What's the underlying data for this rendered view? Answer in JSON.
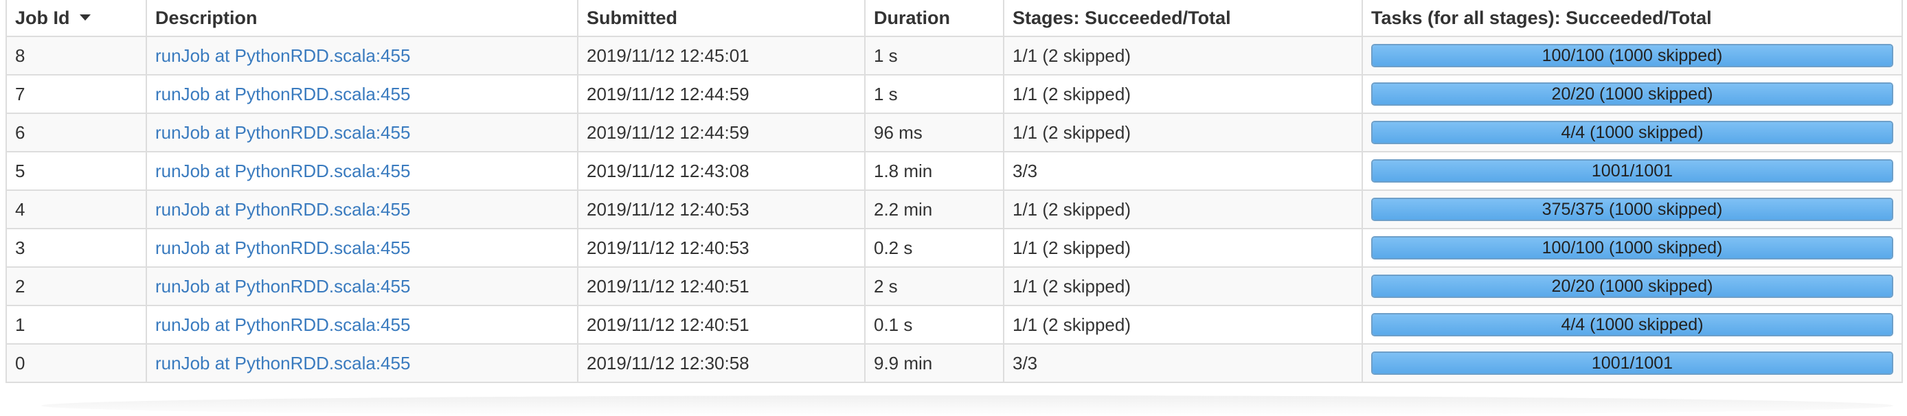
{
  "table": {
    "headers": {
      "job_id": "Job Id",
      "description": "Description",
      "submitted": "Submitted",
      "duration": "Duration",
      "stages": "Stages: Succeeded/Total",
      "tasks": "Tasks (for all stages): Succeeded/Total"
    },
    "rows": [
      {
        "job_id": "8",
        "description": "runJob at PythonRDD.scala:455",
        "submitted": "2019/11/12 12:45:01",
        "duration": "1 s",
        "stages": "1/1 (2 skipped)",
        "tasks": "100/100 (1000 skipped)",
        "progress": 1.0
      },
      {
        "job_id": "7",
        "description": "runJob at PythonRDD.scala:455",
        "submitted": "2019/11/12 12:44:59",
        "duration": "1 s",
        "stages": "1/1 (2 skipped)",
        "tasks": "20/20 (1000 skipped)",
        "progress": 1.0
      },
      {
        "job_id": "6",
        "description": "runJob at PythonRDD.scala:455",
        "submitted": "2019/11/12 12:44:59",
        "duration": "96 ms",
        "stages": "1/1 (2 skipped)",
        "tasks": "4/4 (1000 skipped)",
        "progress": 1.0
      },
      {
        "job_id": "5",
        "description": "runJob at PythonRDD.scala:455",
        "submitted": "2019/11/12 12:43:08",
        "duration": "1.8 min",
        "stages": "3/3",
        "tasks": "1001/1001",
        "progress": 1.0
      },
      {
        "job_id": "4",
        "description": "runJob at PythonRDD.scala:455",
        "submitted": "2019/11/12 12:40:53",
        "duration": "2.2 min",
        "stages": "1/1 (2 skipped)",
        "tasks": "375/375 (1000 skipped)",
        "progress": 1.0
      },
      {
        "job_id": "3",
        "description": "runJob at PythonRDD.scala:455",
        "submitted": "2019/11/12 12:40:53",
        "duration": "0.2 s",
        "stages": "1/1 (2 skipped)",
        "tasks": "100/100 (1000 skipped)",
        "progress": 1.0
      },
      {
        "job_id": "2",
        "description": "runJob at PythonRDD.scala:455",
        "submitted": "2019/11/12 12:40:51",
        "duration": "2 s",
        "stages": "1/1 (2 skipped)",
        "tasks": "20/20 (1000 skipped)",
        "progress": 1.0
      },
      {
        "job_id": "1",
        "description": "runJob at PythonRDD.scala:455",
        "submitted": "2019/11/12 12:40:51",
        "duration": "0.1 s",
        "stages": "1/1 (2 skipped)",
        "tasks": "4/4 (1000 skipped)",
        "progress": 1.0
      },
      {
        "job_id": "0",
        "description": "runJob at PythonRDD.scala:455",
        "submitted": "2019/11/12 12:30:58",
        "duration": "9.9 min",
        "stages": "3/3",
        "tasks": "1001/1001",
        "progress": 1.0
      }
    ]
  },
  "icons": {
    "sort": "sort-descending-caret-icon"
  },
  "colors": {
    "link": "#3a7bbf",
    "progress_fill": "#6db4ef",
    "progress_border": "#6d9fc9",
    "row_stripe": "#f9f9f9",
    "border": "#dddddd"
  }
}
